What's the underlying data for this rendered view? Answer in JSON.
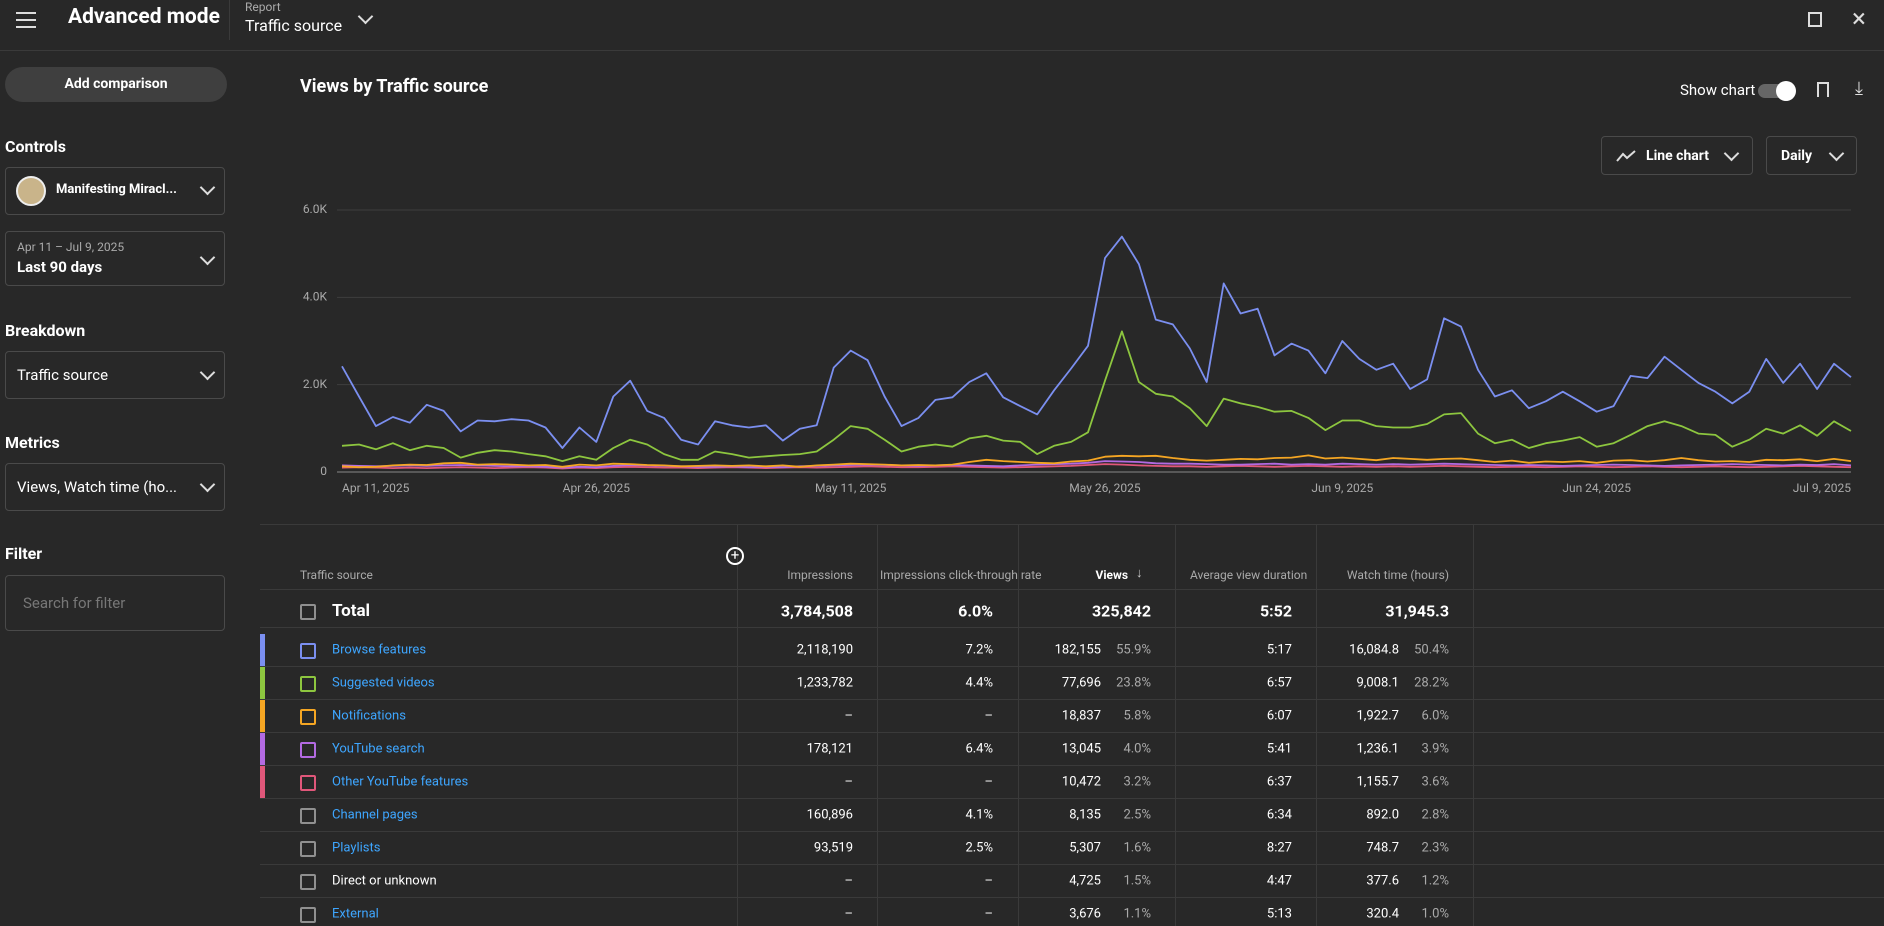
{
  "header": {
    "title": "Advanced mode",
    "report_label": "Report",
    "report_value": "Traffic source"
  },
  "sidebar": {
    "add_comparison": "Add comparison",
    "controls_label": "Controls",
    "channel": "Manifesting Miracl...",
    "date_range": "Apr 11 – Jul 9, 2025",
    "period": "Last 90 days",
    "breakdown_label": "Breakdown",
    "breakdown": "Traffic source",
    "metrics_label": "Metrics",
    "metrics": "Views, Watch time (ho...",
    "filter_label": "Filter",
    "filter_placeholder": "Search for filter"
  },
  "chart_data": {
    "type": "line",
    "title": "Views by Traffic source",
    "show_chart": "Show chart",
    "chart_type": "Line chart",
    "interval": "Daily",
    "grid": true,
    "categories": [
      "Apr 11, 2025",
      null,
      null,
      null,
      null,
      null,
      null,
      null,
      null,
      null,
      null,
      null,
      null,
      null,
      null,
      "Apr 26, 2025",
      null,
      null,
      null,
      null,
      null,
      null,
      null,
      null,
      null,
      null,
      null,
      null,
      null,
      null,
      "May 11, 2025",
      null,
      null,
      null,
      null,
      null,
      null,
      null,
      null,
      null,
      null,
      null,
      null,
      null,
      null,
      "May 26, 2025",
      null,
      null,
      null,
      null,
      null,
      null,
      null,
      null,
      null,
      null,
      null,
      null,
      null,
      "Jun 9, 2025",
      null,
      null,
      null,
      null,
      null,
      null,
      null,
      null,
      null,
      null,
      null,
      null,
      null,
      null,
      "Jun 24, 2025",
      null,
      null,
      null,
      null,
      null,
      null,
      null,
      null,
      null,
      null,
      null,
      null,
      null,
      null,
      "Jul 9, 2025"
    ],
    "ylim": [
      0,
      6000
    ],
    "yticks": [
      0,
      {
        "value": 2000,
        "label": "2.0K"
      },
      {
        "value": 4000,
        "label": "4.0K"
      },
      {
        "value": 6000,
        "label": "6.0K"
      }
    ],
    "series": [
      {
        "name": "Browse features",
        "color": "#7b8ff0",
        "values": [
          2420,
          1730,
          1050,
          1260,
          1130,
          1540,
          1400,
          930,
          1180,
          1160,
          1210,
          1180,
          1020,
          550,
          1020,
          690,
          1730,
          2090,
          1400,
          1240,
          740,
          630,
          1160,
          1070,
          1020,
          1070,
          720,
          990,
          1070,
          2390,
          2780,
          2560,
          1730,
          1050,
          1240,
          1650,
          1710,
          2060,
          2260,
          1710,
          1510,
          1320,
          1870,
          2370,
          2890,
          4900,
          5390,
          4760,
          3490,
          3380,
          2830,
          2060,
          4320,
          3630,
          3740,
          2670,
          2940,
          2780,
          2260,
          3000,
          2590,
          2340,
          2480,
          1900,
          2120,
          3520,
          3330,
          2340,
          1730,
          1870,
          1460,
          1620,
          1840,
          1620,
          1380,
          1510,
          2200,
          2150,
          2640,
          2340,
          2040,
          1840,
          1570,
          1840,
          2590,
          2040,
          2480,
          1900,
          2480,
          2170
        ]
      },
      {
        "name": "Suggested videos",
        "color": "#8dc63f",
        "values": [
          600,
          630,
          520,
          660,
          500,
          600,
          550,
          330,
          440,
          500,
          470,
          410,
          360,
          250,
          360,
          280,
          550,
          740,
          630,
          410,
          280,
          280,
          470,
          410,
          330,
          360,
          390,
          410,
          470,
          740,
          1050,
          990,
          740,
          470,
          580,
          630,
          580,
          770,
          830,
          720,
          690,
          410,
          600,
          690,
          910,
          2090,
          3220,
          2060,
          1790,
          1730,
          1460,
          1050,
          1680,
          1570,
          1490,
          1380,
          1400,
          1240,
          960,
          1180,
          1180,
          1050,
          1020,
          1020,
          1100,
          1320,
          1350,
          880,
          660,
          740,
          550,
          660,
          720,
          800,
          580,
          660,
          850,
          1050,
          1160,
          1050,
          880,
          850,
          580,
          740,
          990,
          880,
          1070,
          830,
          1160,
          940
        ]
      },
      {
        "name": "Notifications",
        "color": "#f5a623",
        "values": [
          130,
          110,
          120,
          150,
          170,
          160,
          200,
          210,
          170,
          180,
          170,
          150,
          160,
          120,
          170,
          150,
          190,
          180,
          160,
          150,
          130,
          140,
          150,
          140,
          150,
          130,
          150,
          120,
          150,
          170,
          190,
          180,
          170,
          150,
          160,
          150,
          170,
          230,
          280,
          250,
          230,
          210,
          200,
          240,
          260,
          350,
          370,
          360,
          370,
          320,
          280,
          260,
          280,
          300,
          290,
          320,
          330,
          380,
          310,
          330,
          300,
          270,
          320,
          300,
          280,
          300,
          310,
          270,
          230,
          260,
          210,
          240,
          230,
          250,
          210,
          260,
          270,
          240,
          270,
          320,
          270,
          240,
          250,
          230,
          280,
          270,
          290,
          250,
          300,
          250
        ]
      },
      {
        "name": "YouTube search",
        "color": "#b36ae2",
        "values": [
          150,
          140,
          130,
          140,
          150,
          140,
          150,
          160,
          150,
          140,
          130,
          130,
          120,
          100,
          120,
          110,
          140,
          160,
          150,
          140,
          130,
          120,
          120,
          130,
          110,
          120,
          110,
          130,
          140,
          150,
          160,
          170,
          160,
          150,
          140,
          150,
          160,
          150,
          140,
          130,
          150,
          170,
          180,
          190,
          210,
          250,
          240,
          230,
          200,
          190,
          190,
          180,
          170,
          170,
          180,
          190,
          170,
          180,
          170,
          190,
          180,
          170,
          180,
          170,
          180,
          190,
          180,
          170,
          160,
          150,
          160,
          150,
          140,
          150,
          160,
          170,
          160,
          150,
          140,
          150,
          160,
          170,
          180,
          170,
          160,
          150,
          170,
          160,
          180,
          150
        ]
      },
      {
        "name": "Other YouTube features",
        "color": "#e0577a",
        "values": [
          100,
          110,
          100,
          90,
          100,
          90,
          100,
          110,
          100,
          90,
          100,
          110,
          100,
          80,
          100,
          90,
          110,
          120,
          110,
          100,
          100,
          90,
          100,
          110,
          100,
          90,
          100,
          110,
          100,
          110,
          120,
          130,
          120,
          110,
          110,
          120,
          130,
          120,
          110,
          100,
          110,
          120,
          130,
          140,
          160,
          180,
          170,
          150,
          140,
          130,
          130,
          120,
          130,
          140,
          130,
          120,
          130,
          140,
          130,
          120,
          130,
          120,
          130,
          120,
          130,
          140,
          130,
          120,
          110,
          120,
          120,
          110,
          120,
          130,
          120,
          110,
          120,
          130,
          120,
          110,
          120,
          130,
          120,
          110,
          120,
          130,
          140,
          130,
          120,
          110
        ]
      }
    ]
  },
  "table": {
    "columns": [
      "Traffic source",
      "Impressions",
      "Impressions click-through rate",
      "Views",
      "Average view duration",
      "Watch time (hours)"
    ],
    "total": {
      "name": "Total",
      "impressions": "3,784,508",
      "ctr": "6.0%",
      "views": "325,842",
      "avd": "5:52",
      "watch": "31,945.3"
    },
    "rows": [
      {
        "name": "Browse features",
        "color": "#7b8ff0",
        "impressions": "2,118,190",
        "ctr": "7.2%",
        "views": "182,155",
        "views_pct": "55.9%",
        "avd": "5:17",
        "watch": "16,084.8",
        "watch_pct": "50.4%"
      },
      {
        "name": "Suggested videos",
        "color": "#8dc63f",
        "impressions": "1,233,782",
        "ctr": "4.4%",
        "views": "77,696",
        "views_pct": "23.8%",
        "avd": "6:57",
        "watch": "9,008.1",
        "watch_pct": "28.2%"
      },
      {
        "name": "Notifications",
        "color": "#f5a623",
        "impressions": "–",
        "ctr": "–",
        "views": "18,837",
        "views_pct": "5.8%",
        "avd": "6:07",
        "watch": "1,922.7",
        "watch_pct": "6.0%"
      },
      {
        "name": "YouTube search",
        "color": "#b36ae2",
        "impressions": "178,121",
        "ctr": "6.4%",
        "views": "13,045",
        "views_pct": "4.0%",
        "avd": "5:41",
        "watch": "1,236.1",
        "watch_pct": "3.9%"
      },
      {
        "name": "Other YouTube features",
        "color": "#e0577a",
        "impressions": "–",
        "ctr": "–",
        "views": "10,472",
        "views_pct": "3.2%",
        "avd": "6:37",
        "watch": "1,155.7",
        "watch_pct": "3.6%"
      },
      {
        "name": "Channel pages",
        "impressions": "160,896",
        "ctr": "4.1%",
        "views": "8,135",
        "views_pct": "2.5%",
        "avd": "6:34",
        "watch": "892.0",
        "watch_pct": "2.8%"
      },
      {
        "name": "Playlists",
        "impressions": "93,519",
        "ctr": "2.5%",
        "views": "5,307",
        "views_pct": "1.6%",
        "avd": "8:27",
        "watch": "748.7",
        "watch_pct": "2.3%"
      },
      {
        "name": "Direct or unknown",
        "impressions": "–",
        "ctr": "–",
        "views": "4,725",
        "views_pct": "1.5%",
        "avd": "4:47",
        "watch": "377.6",
        "watch_pct": "1.2%"
      },
      {
        "name": "External",
        "impressions": "–",
        "ctr": "–",
        "views": "3,676",
        "views_pct": "1.1%",
        "avd": "5:13",
        "watch": "320.4",
        "watch_pct": "1.0%"
      }
    ]
  }
}
